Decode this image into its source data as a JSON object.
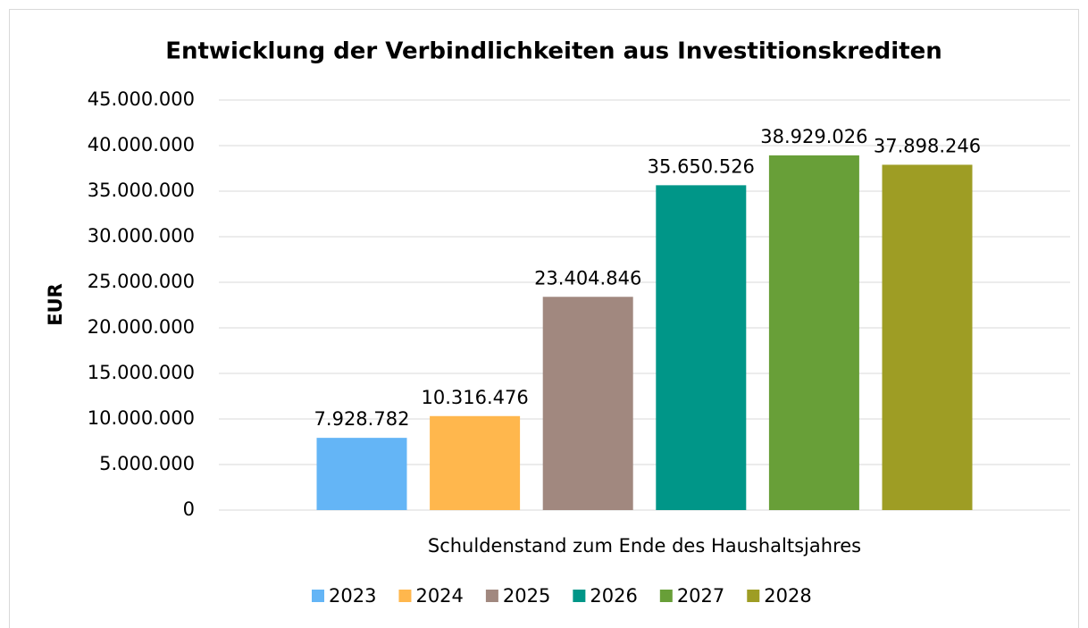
{
  "chart_data": {
    "type": "bar",
    "title": "Entwicklung der Verbindlichkeiten aus Investitionskrediten",
    "ylabel": "EUR",
    "categories": [
      "Schuldenstand zum Ende des Haushaltsjahres"
    ],
    "series": [
      {
        "name": "2023",
        "color": "#64b5f6",
        "values": [
          7928782
        ],
        "value_labels": [
          "7.928.782"
        ]
      },
      {
        "name": "2024",
        "color": "#ffb74d",
        "values": [
          10316476
        ],
        "value_labels": [
          "10.316.476"
        ]
      },
      {
        "name": "2025",
        "color": "#a1887f",
        "values": [
          23404846
        ],
        "value_labels": [
          "23.404.846"
        ]
      },
      {
        "name": "2026",
        "color": "#009688",
        "values": [
          35650526
        ],
        "value_labels": [
          "35.650.526"
        ]
      },
      {
        "name": "2027",
        "color": "#689f38",
        "values": [
          38929026
        ],
        "value_labels": [
          "38.929.026"
        ]
      },
      {
        "name": "2028",
        "color": "#9e9d24",
        "values": [
          37898246
        ],
        "value_labels": [
          "37.898.246"
        ]
      }
    ],
    "ylim": [
      0,
      45000000
    ],
    "yticks": [
      0,
      {
        "value": 5000000,
        "label": "5.000.000"
      },
      {
        "value": 10000000,
        "label": "10.000.000"
      },
      {
        "value": 15000000,
        "label": "15.000.000"
      },
      {
        "value": 20000000,
        "label": "20.000.000"
      },
      {
        "value": 25000000,
        "label": "25.000.000"
      },
      {
        "value": 30000000,
        "label": "30.000.000"
      },
      {
        "value": 35000000,
        "label": "35.000.000"
      },
      {
        "value": 40000000,
        "label": "40.000.000"
      },
      {
        "value": 45000000,
        "label": "45.000.000"
      }
    ],
    "grid": true,
    "legend": "bottom"
  }
}
